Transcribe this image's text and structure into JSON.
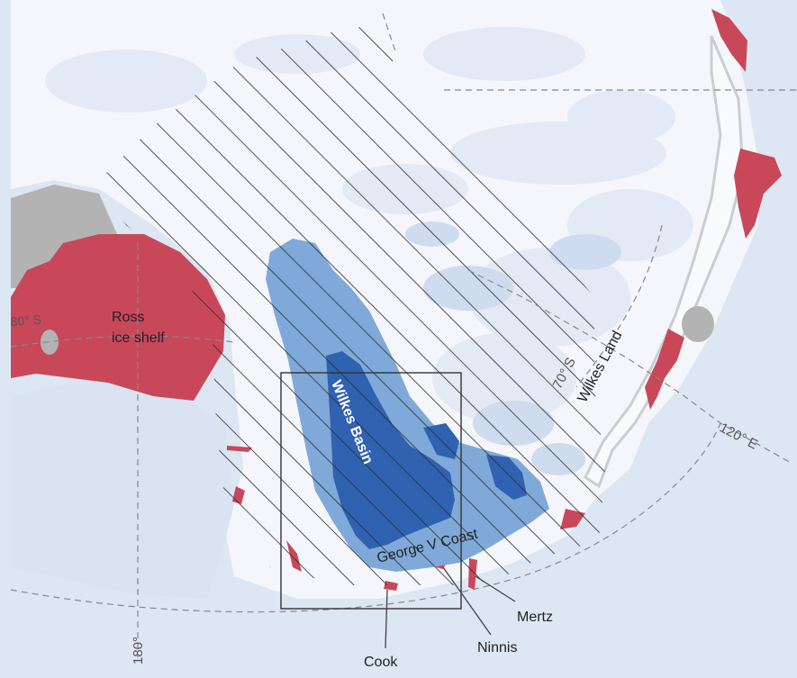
{
  "labels": {
    "ross": "Ross",
    "ross2": "ice shelf",
    "wilkes_basin": "Wilkes Basin",
    "wilkes_land": "Wilkes Land",
    "george_v": "George V Coast",
    "lat70": "70° S",
    "lon120": "120° E",
    "lon180": "180°",
    "lat80": "80° S",
    "cook": "Cook",
    "ninnis": "Ninnis",
    "mertz": "Mertz"
  },
  "colors": {
    "ocean": "#dde6f3",
    "ice_sheet": "#f4f6fb",
    "ice_pale": "#e6ecf6",
    "ice_shelf": "#c8485a",
    "basin_light": "#7fa9d8",
    "basin_dark": "#2f62b0",
    "rock_grey": "#b3b3b3"
  }
}
